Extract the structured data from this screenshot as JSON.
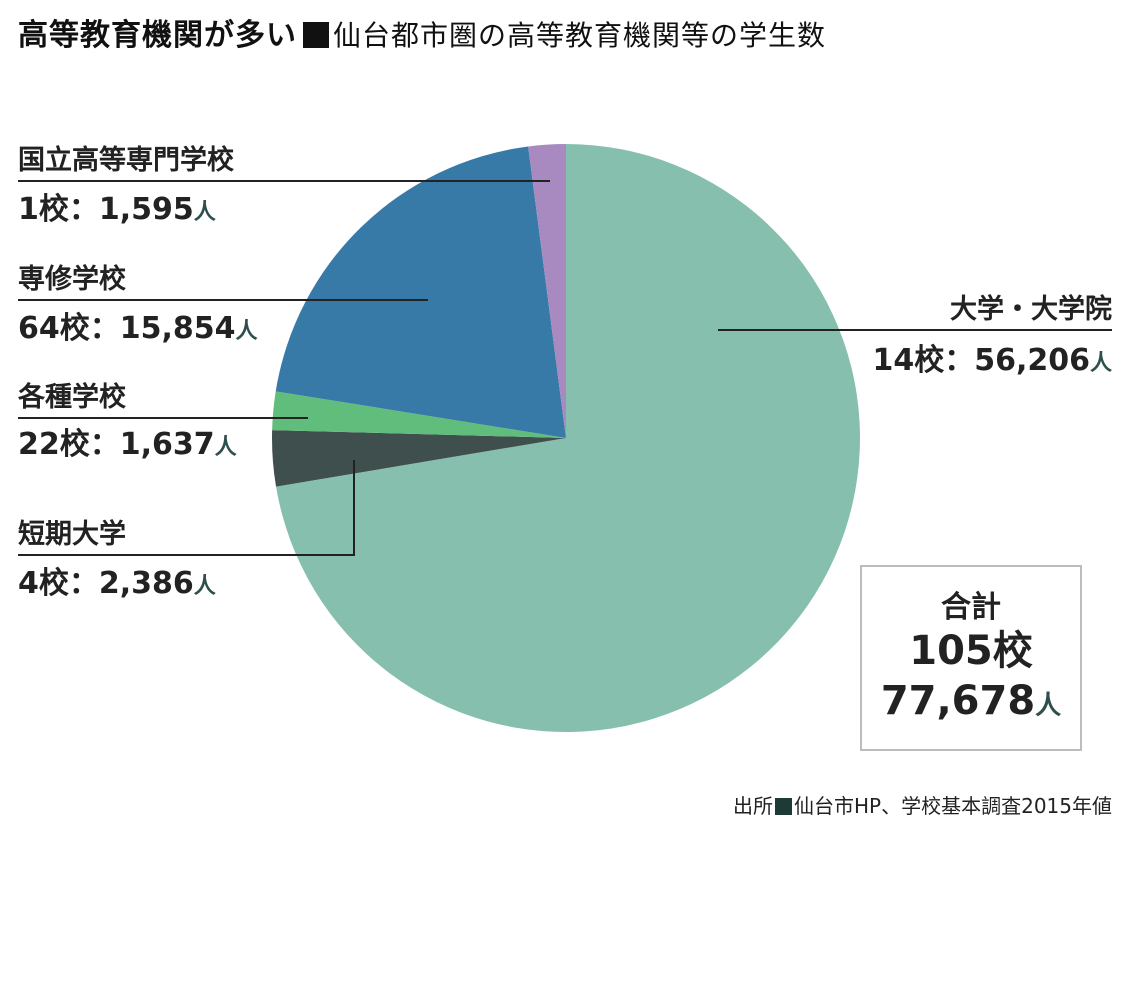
{
  "header": {
    "title": "高等教育機関が多い",
    "subtitle": "仙台都市圏の高等教育機関等の学生数"
  },
  "chart_data": {
    "type": "pie",
    "title": "仙台都市圏の高等教育機関等の学生数",
    "unit": "人",
    "slices": [
      {
        "category": "大学・大学院",
        "schools": "14校",
        "count": "56,206",
        "value": 56206,
        "color": "#87bfae"
      },
      {
        "category": "短期大学",
        "schools": "4校",
        "count": "2,386",
        "value": 2386,
        "color": "#3f4f4d"
      },
      {
        "category": "各種学校",
        "schools": "22校",
        "count": "1,637",
        "value": 1637,
        "color": "#61bd7b"
      },
      {
        "category": "専修学校",
        "schools": "64校",
        "count": "15,854",
        "value": 15854,
        "color": "#377aa8"
      },
      {
        "category": "国立高等専門学校",
        "schools": "1校",
        "count": "1,595",
        "value": 1595,
        "color": "#a98ac0"
      }
    ]
  },
  "total": {
    "label": "合計",
    "schools": "105校",
    "students": "77,678",
    "unit": "人"
  },
  "source": {
    "prefix": "出所",
    "text": "仙台市HP、学校基本調査2015年値"
  }
}
